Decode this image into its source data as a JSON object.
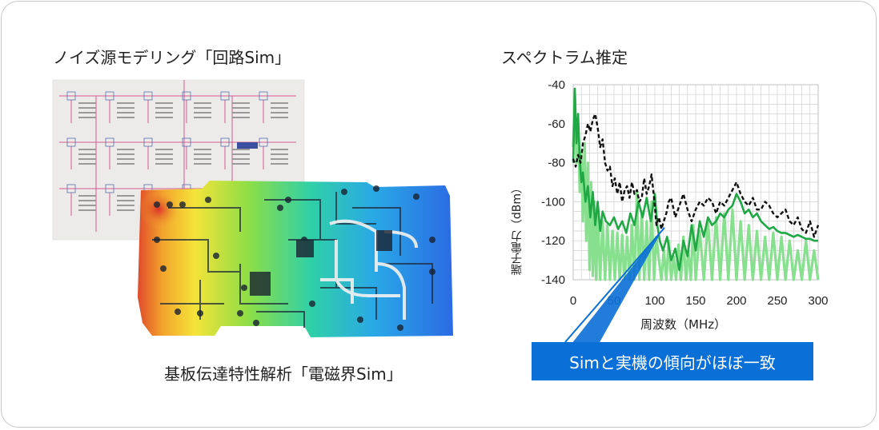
{
  "headings": {
    "left": "ノイズ源モデリング「回路Sim」",
    "right": "スペクトラム推定"
  },
  "caption": "基板伝達特性解析「電磁界Sim」",
  "callout": "Simと実機の傾向がほぼ一致",
  "colors": {
    "callout_bg": "#0a6fd6",
    "series_light": "#86e08e",
    "series_dark": "#1fa844",
    "series_measured": "#111111"
  },
  "icons": {
    "schematic": "circuit-schematic-image",
    "pcb": "pcb-heatmap-image"
  },
  "chart_data": {
    "type": "line",
    "xlabel": "周波数（MHz）",
    "ylabel": "端子電力（dBm）",
    "xlim": [
      0,
      300
    ],
    "ylim": [
      -140,
      -40
    ],
    "xticks": [
      0,
      50,
      100,
      150,
      200,
      250,
      300
    ],
    "xtick_labels": [
      "0",
      "50",
      "100",
      "150",
      "200",
      "250",
      "300"
    ],
    "yticks": [
      -140,
      -120,
      -100,
      -80,
      -60,
      -40
    ],
    "ytick_labels": [
      "-140",
      "-120",
      "-100",
      "-80",
      "-60",
      "-40"
    ],
    "grid": true,
    "series": [
      {
        "style": "light-green-spiky",
        "x": [
          0,
          2,
          4,
          6,
          8,
          10,
          12,
          14,
          16,
          18,
          20,
          22,
          24,
          26,
          28,
          30,
          33,
          36,
          39,
          42,
          45,
          48,
          51,
          54,
          57,
          60,
          63,
          66,
          69,
          72,
          75,
          78,
          81,
          84,
          87,
          90,
          93,
          96,
          99,
          102,
          105,
          108,
          111,
          114,
          117,
          120,
          123,
          126,
          129,
          132,
          135,
          138,
          141,
          144,
          147,
          150,
          155,
          160,
          165,
          170,
          175,
          180,
          185,
          190,
          195,
          200,
          205,
          210,
          215,
          220,
          225,
          230,
          235,
          240,
          245,
          250,
          255,
          260,
          265,
          270,
          275,
          280,
          285,
          290,
          295,
          300
        ],
        "values": [
          -72,
          -45,
          -80,
          -60,
          -95,
          -75,
          -110,
          -70,
          -120,
          -80,
          -135,
          -90,
          -138,
          -100,
          -140,
          -105,
          -140,
          -110,
          -140,
          -112,
          -140,
          -115,
          -140,
          -116,
          -140,
          -117,
          -140,
          -118,
          -140,
          -112,
          -140,
          -95,
          -140,
          -105,
          -140,
          -110,
          -140,
          -100,
          -140,
          -118,
          -130,
          -140,
          -125,
          -140,
          -120,
          -140,
          -128,
          -140,
          -122,
          -140,
          -118,
          -140,
          -125,
          -140,
          -112,
          -140,
          -115,
          -140,
          -110,
          -140,
          -108,
          -140,
          -106,
          -140,
          -104,
          -140,
          -110,
          -140,
          -112,
          -140,
          -115,
          -140,
          -118,
          -140,
          -116,
          -140,
          -118,
          -140,
          -120,
          -140,
          -125,
          -140,
          -120,
          -140,
          -125,
          -140
        ]
      },
      {
        "style": "dark-green",
        "x": [
          0,
          2,
          4,
          6,
          8,
          10,
          12,
          15,
          18,
          21,
          24,
          27,
          30,
          33,
          36,
          40,
          45,
          50,
          55,
          60,
          65,
          70,
          75,
          80,
          85,
          90,
          95,
          100,
          103,
          106,
          110,
          115,
          120,
          125,
          130,
          135,
          140,
          145,
          150,
          155,
          160,
          165,
          170,
          175,
          180,
          185,
          190,
          195,
          200,
          205,
          210,
          215,
          220,
          225,
          230,
          235,
          240,
          245,
          250,
          255,
          260,
          265,
          270,
          275,
          280,
          285,
          290,
          295,
          300
        ],
        "values": [
          -80,
          -42,
          -70,
          -55,
          -78,
          -90,
          -85,
          -100,
          -92,
          -108,
          -95,
          -112,
          -100,
          -115,
          -105,
          -110,
          -112,
          -108,
          -114,
          -110,
          -116,
          -106,
          -112,
          -100,
          -108,
          -98,
          -110,
          -96,
          -112,
          -120,
          -125,
          -118,
          -130,
          -124,
          -135,
          -120,
          -128,
          -112,
          -125,
          -110,
          -118,
          -108,
          -112,
          -110,
          -106,
          -108,
          -104,
          -102,
          -96,
          -100,
          -106,
          -104,
          -108,
          -106,
          -110,
          -112,
          -114,
          -113,
          -115,
          -116,
          -116,
          -117,
          -118,
          -117,
          -118,
          -119,
          -119,
          -120,
          -120
        ]
      },
      {
        "style": "black-dashed",
        "x": [
          0,
          3,
          6,
          9,
          12,
          15,
          18,
          21,
          24,
          27,
          30,
          33,
          36,
          39,
          42,
          45,
          48,
          51,
          54,
          57,
          60,
          63,
          66,
          69,
          72,
          75,
          78,
          81,
          84,
          87,
          90,
          93,
          96,
          99,
          102,
          105,
          108,
          111,
          114,
          117,
          120,
          125,
          130,
          135,
          140,
          145,
          150,
          155,
          160,
          165,
          170,
          175,
          180,
          185,
          190,
          195,
          200,
          205,
          210,
          215,
          220,
          225,
          230,
          235,
          240,
          245,
          250,
          255,
          260,
          265,
          270,
          275,
          280,
          285,
          290,
          295,
          300
        ],
        "values": [
          -78,
          -82,
          -76,
          -80,
          -70,
          -66,
          -60,
          -64,
          -58,
          -55,
          -62,
          -72,
          -68,
          -80,
          -84,
          -82,
          -92,
          -88,
          -96,
          -90,
          -100,
          -94,
          -92,
          -98,
          -90,
          -96,
          -94,
          -100,
          -98,
          -88,
          -96,
          -92,
          -86,
          -98,
          -112,
          -108,
          -114,
          -110,
          -106,
          -100,
          -98,
          -108,
          -102,
          -96,
          -104,
          -110,
          -104,
          -100,
          -102,
          -98,
          -100,
          -106,
          -100,
          -102,
          -98,
          -94,
          -90,
          -96,
          -100,
          -102,
          -98,
          -104,
          -104,
          -100,
          -102,
          -106,
          -108,
          -106,
          -104,
          -110,
          -112,
          -108,
          -114,
          -116,
          -110,
          -118,
          -112
        ]
      }
    ]
  }
}
